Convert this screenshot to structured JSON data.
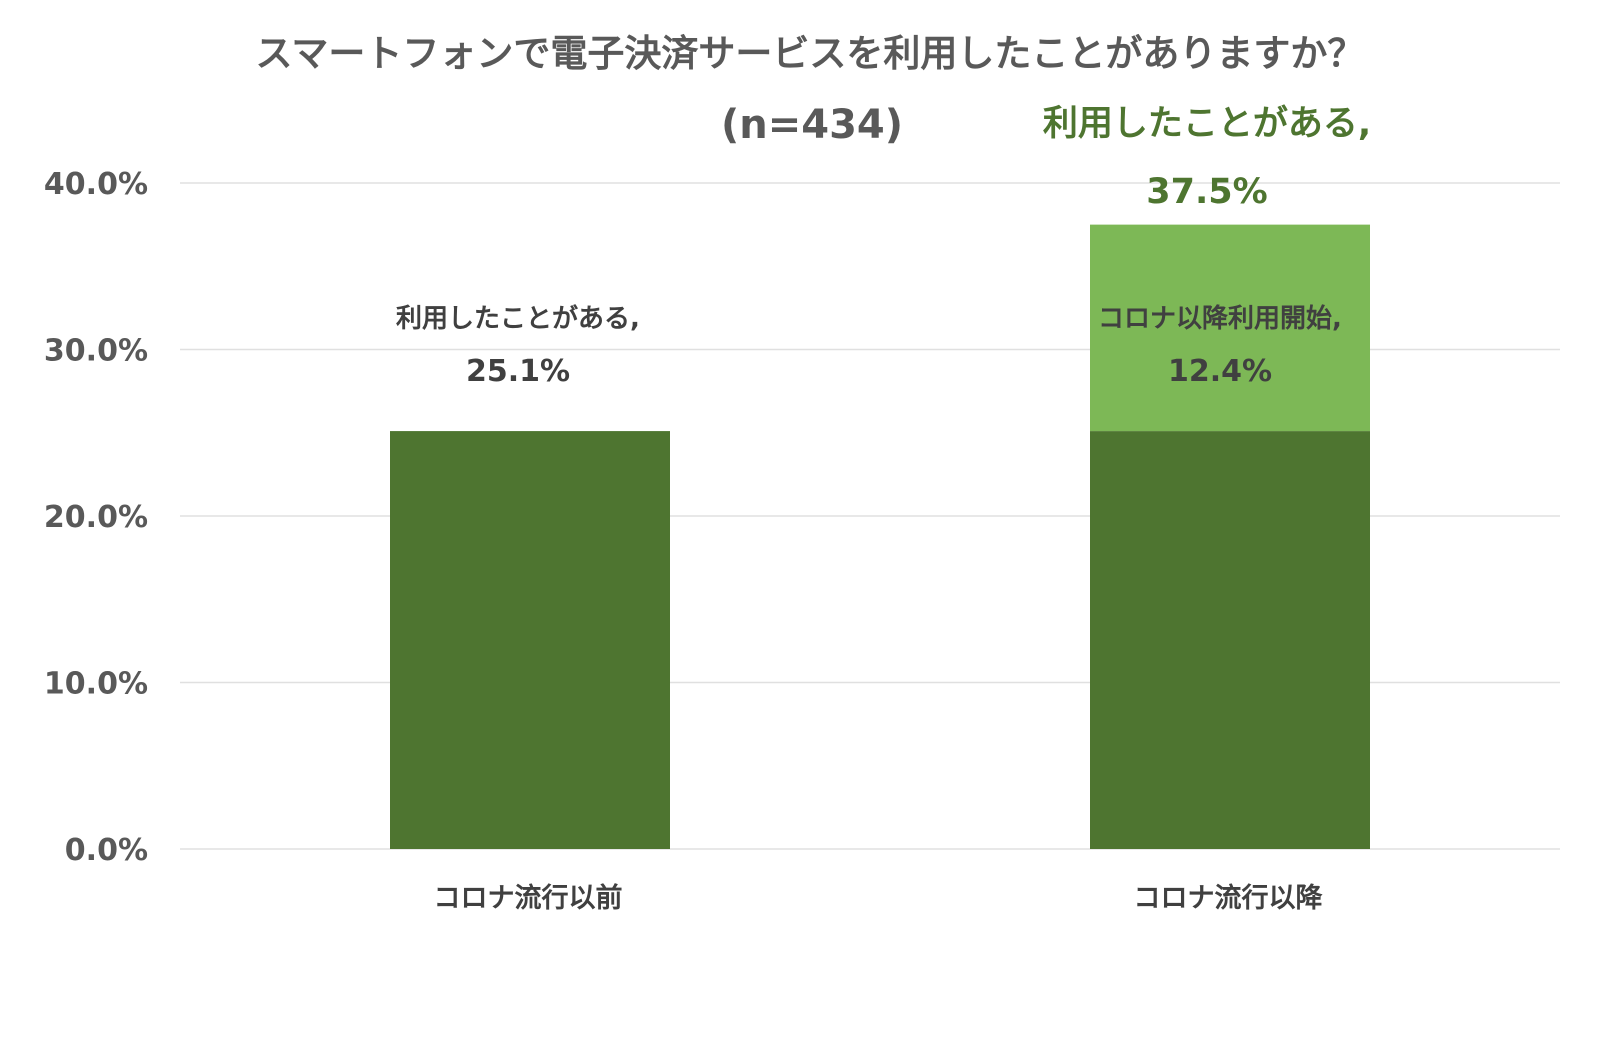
{
  "chart_data": {
    "type": "bar",
    "stacked": true,
    "title": "スマートフォンで電子決済サービスを利用したことがありますか？",
    "subtitle": "(n=434)",
    "categories": [
      "コロナ流行以前",
      "コロナ流行以降"
    ],
    "series": [
      {
        "values": [
          25.1,
          25.1
        ],
        "color": "#4e7530",
        "data_labels": [
          {
            "line1": "利用したことがある,",
            "line2": "25.1%"
          },
          null
        ]
      },
      {
        "values": [
          0,
          12.4
        ],
        "color": "#7db856",
        "data_labels": [
          null,
          {
            "line1": "コロナ以降利用開始,",
            "line2": "12.4%"
          }
        ]
      }
    ],
    "total_label": {
      "line1": "利用したことがある,",
      "line2": "37.5%",
      "color": "#4e7530"
    },
    "yticks": [
      "0.0%",
      "10.0%",
      "20.0%",
      "30.0%",
      "40.0%"
    ],
    "ylim": [
      0,
      40
    ],
    "grid": true,
    "gridline_color": "#e0e0e0"
  }
}
